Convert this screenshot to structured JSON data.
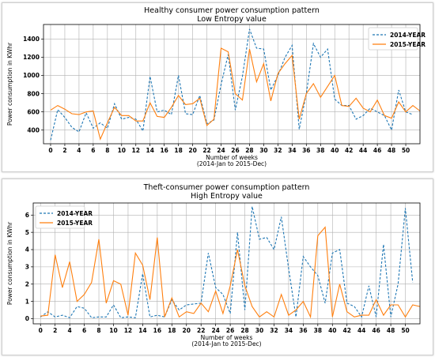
{
  "chart_data": [
    {
      "type": "line",
      "title": "Healthy consumer power consumption pattern",
      "subtitle": "Low Entropy value",
      "xlabel": "Number of weeks",
      "xlabel2": "(2014-Jan to 2015-Dec)",
      "ylabel": "Power consumption in KWhr",
      "xlim": [
        -1,
        52
      ],
      "ylim": [
        250,
        1560
      ],
      "xticks": [
        0,
        2,
        4,
        6,
        8,
        10,
        12,
        14,
        16,
        18,
        20,
        22,
        24,
        26,
        28,
        30,
        32,
        34,
        36,
        38,
        40,
        42,
        44,
        46,
        48,
        50
      ],
      "yticks": [
        400,
        600,
        800,
        1000,
        1200,
        1400
      ],
      "grid": true,
      "legend": "upper right",
      "series": [
        {
          "name": "2014-YEAR",
          "color": "#1f77b4",
          "style": "dashed",
          "values": [
            290,
            625,
            540,
            430,
            380,
            590,
            420,
            480,
            420,
            690,
            520,
            540,
            520,
            390,
            990,
            600,
            620,
            570,
            1000,
            580,
            570,
            780,
            470,
            510,
            900,
            1230,
            620,
            990,
            1510,
            1300,
            1290,
            840,
            1000,
            1200,
            1330,
            410,
            800,
            1350,
            1200,
            1290,
            740,
            670,
            670,
            520,
            560,
            640,
            600,
            560,
            400,
            840,
            600,
            570
          ]
        },
        {
          "name": "2015-YEAR",
          "color": "#ff7f0e",
          "style": "solid",
          "values": [
            620,
            670,
            630,
            580,
            570,
            600,
            610,
            300,
            480,
            650,
            560,
            560,
            500,
            500,
            700,
            550,
            540,
            650,
            780,
            680,
            690,
            750,
            450,
            520,
            1300,
            1260,
            800,
            730,
            1290,
            930,
            1130,
            720,
            1020,
            1130,
            1220,
            520,
            800,
            910,
            760,
            880,
            1000,
            670,
            660,
            750,
            640,
            600,
            730,
            560,
            530,
            710,
            600,
            670,
            610
          ]
        }
      ]
    },
    {
      "type": "line",
      "title": "Theft-consumer power consumption pattern",
      "subtitle": "High Entropy value",
      "xlabel": "Number of weeks",
      "xlabel2": "(2014-Jan to 2015-Dec)",
      "ylabel": "Power consumption in KWhr",
      "xlim": [
        -1,
        52
      ],
      "ylim": [
        -0.3,
        6.7
      ],
      "xticks": [
        0,
        2,
        4,
        6,
        8,
        10,
        12,
        14,
        16,
        18,
        20,
        22,
        24,
        26,
        28,
        30,
        32,
        34,
        36,
        38,
        40,
        42,
        44,
        46,
        48,
        50
      ],
      "yticks": [
        0,
        1,
        2,
        3,
        4,
        5,
        6
      ],
      "grid": true,
      "legend": "upper left",
      "series": [
        {
          "name": "2014-YEAR",
          "color": "#1f77b4",
          "style": "dashed",
          "values": [
            0.1,
            0.4,
            0.1,
            0.2,
            0.05,
            0.7,
            0.6,
            0.05,
            0.1,
            0.1,
            0.8,
            0.05,
            0.1,
            0.05,
            2.6,
            0.1,
            0.2,
            0.1,
            1.1,
            0.5,
            0.8,
            0.85,
            0.9,
            3.8,
            1.8,
            1.4,
            0.3,
            5.0,
            0.5,
            6.5,
            4.6,
            4.7,
            4.0,
            5.9,
            2.9,
            0.1,
            3.6,
            3.0,
            2.5,
            0.9,
            3.8,
            4.0,
            0.9,
            0.7,
            0.1,
            1.9,
            0.1,
            4.3,
            0.1,
            2.0,
            6.4,
            2.1
          ]
        },
        {
          "name": "2015-YEAR",
          "color": "#ff7f0e",
          "style": "solid",
          "values": [
            0.15,
            0.2,
            3.7,
            1.8,
            3.3,
            1.0,
            1.4,
            2.1,
            4.6,
            0.9,
            2.2,
            2.0,
            0.2,
            3.8,
            3.1,
            1.1,
            4.7,
            0.1,
            1.2,
            0.1,
            0.4,
            0.3,
            0.9,
            0.4,
            1.6,
            0.3,
            1.9,
            4.0,
            1.9,
            0.7,
            0.1,
            0.4,
            0.1,
            1.4,
            0.2,
            0.5,
            1.0,
            0.1,
            4.8,
            5.3,
            0.1,
            2.0,
            0.4,
            0.1,
            0.2,
            0.2,
            1.1,
            0.2,
            0.8,
            0.8,
            0.1,
            0.8,
            0.7
          ]
        }
      ]
    }
  ]
}
